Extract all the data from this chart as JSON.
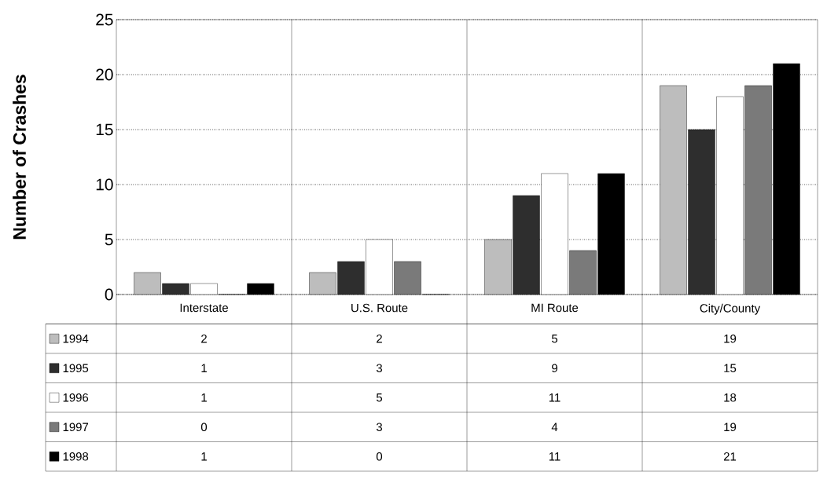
{
  "chart_data": {
    "type": "bar",
    "ylabel": "Number of Crashes",
    "categories": [
      "Interstate",
      "U.S. Route",
      "MI Route",
      "City/County"
    ],
    "series": [
      {
        "name": "1994",
        "color": "#bdbdbd",
        "values": [
          2,
          2,
          5,
          19
        ]
      },
      {
        "name": "1995",
        "color": "#2e2e2e",
        "values": [
          1,
          3,
          9,
          15
        ]
      },
      {
        "name": "1996",
        "color": "#ffffff",
        "values": [
          1,
          5,
          11,
          18
        ]
      },
      {
        "name": "1997",
        "color": "#7a7a7a",
        "values": [
          0,
          3,
          4,
          19
        ]
      },
      {
        "name": "1998",
        "color": "#000000",
        "values": [
          1,
          0,
          11,
          21
        ]
      }
    ],
    "ylim": [
      0,
      25
    ],
    "yticks": [
      0,
      5,
      10,
      15,
      20,
      25
    ],
    "grid": "y",
    "legend": "bottom",
    "data_labels": true
  }
}
